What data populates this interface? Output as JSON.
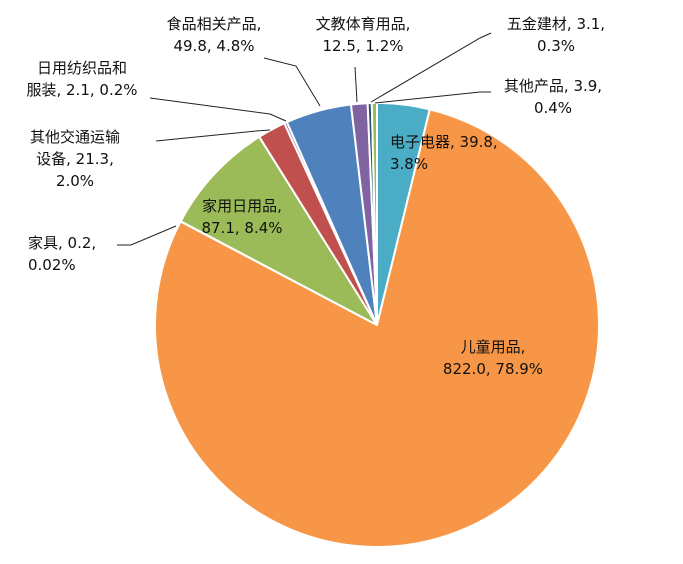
{
  "chart_data": {
    "type": "pie",
    "title": "",
    "slices": [
      {
        "name": "电子电器",
        "value": 39.8,
        "percent": "3.8%",
        "color": "#4BACC6",
        "label_lines": [
          "电子电器, 39.8,",
          "3.8%"
        ]
      },
      {
        "name": "儿童用品",
        "value": 822.0,
        "percent": "78.9%",
        "color": "#F79646",
        "label_lines": [
          "儿童用品,",
          "822.0, 78.9%"
        ]
      },
      {
        "name": "家具",
        "value": 0.2,
        "percent": "0.02%",
        "color": "#F2F2F2",
        "label_lines": [
          "家具, 0.2,",
          "0.02%"
        ]
      },
      {
        "name": "家用日用品",
        "value": 87.1,
        "percent": "8.4%",
        "color": "#9BBB59",
        "label_lines": [
          "家用日用品,",
          "87.1, 8.4%"
        ]
      },
      {
        "name": "其他交通运输设备",
        "value": 21.3,
        "percent": "2.0%",
        "color": "#C0504D",
        "label_lines": [
          "其他交通运输",
          "设备, 21.3,",
          "2.0%"
        ]
      },
      {
        "name": "日用纺织品和服装",
        "value": 2.1,
        "percent": "0.2%",
        "color": "#8064A2",
        "label_lines": [
          "日用纺织品和",
          "服装, 2.1, 0.2%"
        ]
      },
      {
        "name": "食品相关产品",
        "value": 49.8,
        "percent": "4.8%",
        "color": "#4F81BD",
        "label_lines": [
          "食品相关产品,",
          "49.8, 4.8%"
        ]
      },
      {
        "name": "文教体育用品",
        "value": 12.5,
        "percent": "1.2%",
        "color": "#8064A2",
        "label_lines": [
          "文教体育用品,",
          "12.5, 1.2%"
        ]
      },
      {
        "name": "五金建材",
        "value": 3.1,
        "percent": "0.3%",
        "color": "#2C4D75",
        "label_lines": [
          "五金建材, 3.1,",
          "0.3%"
        ]
      },
      {
        "name": "其他产品",
        "value": 3.9,
        "percent": "0.4%",
        "color": "#9BBB59",
        "label_lines": [
          "其他产品, 3.9,",
          "0.4%"
        ]
      }
    ]
  }
}
